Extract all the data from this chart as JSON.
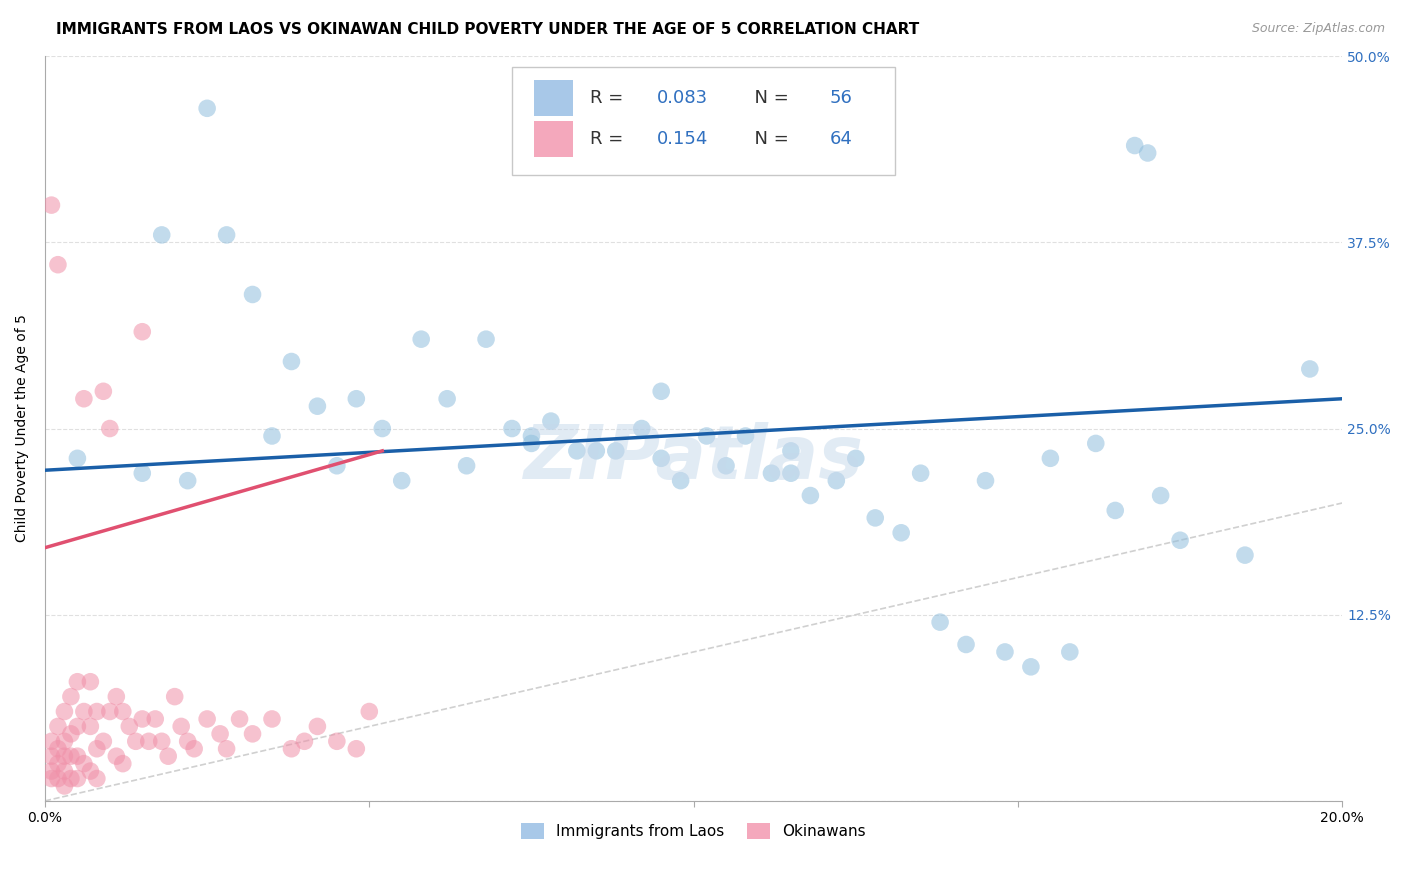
{
  "title": "IMMIGRANTS FROM LAOS VS OKINAWAN CHILD POVERTY UNDER THE AGE OF 5 CORRELATION CHART",
  "source": "Source: ZipAtlas.com",
  "ylabel_label": "Child Poverty Under the Age of 5",
  "x_min": 0.0,
  "x_max": 0.2,
  "y_min": 0.0,
  "y_max": 0.5,
  "x_ticks": [
    0.0,
    0.05,
    0.1,
    0.15,
    0.2
  ],
  "x_tick_labels": [
    "0.0%",
    "",
    "",
    "",
    "20.0%"
  ],
  "y_ticks": [
    0.0,
    0.125,
    0.25,
    0.375,
    0.5
  ],
  "y_tick_labels": [
    "",
    "12.5%",
    "25.0%",
    "37.5%",
    "50.0%"
  ],
  "blue_scatter_x": [
    0.005,
    0.018,
    0.025,
    0.028,
    0.032,
    0.038,
    0.042,
    0.048,
    0.052,
    0.058,
    0.062,
    0.068,
    0.072,
    0.075,
    0.078,
    0.082,
    0.088,
    0.092,
    0.095,
    0.098,
    0.102,
    0.108,
    0.112,
    0.115,
    0.118,
    0.122,
    0.128,
    0.132,
    0.138,
    0.142,
    0.148,
    0.152,
    0.158,
    0.162,
    0.168,
    0.172,
    0.015,
    0.022,
    0.035,
    0.045,
    0.055,
    0.065,
    0.075,
    0.085,
    0.095,
    0.105,
    0.115,
    0.125,
    0.135,
    0.145,
    0.155,
    0.165,
    0.175,
    0.185,
    0.195,
    0.17
  ],
  "blue_scatter_y": [
    0.23,
    0.38,
    0.465,
    0.38,
    0.34,
    0.295,
    0.265,
    0.27,
    0.25,
    0.31,
    0.27,
    0.31,
    0.25,
    0.245,
    0.255,
    0.235,
    0.235,
    0.25,
    0.275,
    0.215,
    0.245,
    0.245,
    0.22,
    0.22,
    0.205,
    0.215,
    0.19,
    0.18,
    0.12,
    0.105,
    0.1,
    0.09,
    0.1,
    0.24,
    0.44,
    0.205,
    0.22,
    0.215,
    0.245,
    0.225,
    0.215,
    0.225,
    0.24,
    0.235,
    0.23,
    0.225,
    0.235,
    0.23,
    0.22,
    0.215,
    0.23,
    0.195,
    0.175,
    0.165,
    0.29,
    0.435
  ],
  "pink_scatter_x": [
    0.001,
    0.001,
    0.001,
    0.001,
    0.001,
    0.002,
    0.002,
    0.002,
    0.002,
    0.002,
    0.003,
    0.003,
    0.003,
    0.003,
    0.003,
    0.004,
    0.004,
    0.004,
    0.004,
    0.005,
    0.005,
    0.005,
    0.005,
    0.006,
    0.006,
    0.006,
    0.007,
    0.007,
    0.007,
    0.008,
    0.008,
    0.008,
    0.009,
    0.009,
    0.01,
    0.01,
    0.011,
    0.011,
    0.012,
    0.012,
    0.013,
    0.014,
    0.015,
    0.015,
    0.016,
    0.017,
    0.018,
    0.019,
    0.02,
    0.021,
    0.022,
    0.023,
    0.025,
    0.027,
    0.028,
    0.03,
    0.032,
    0.035,
    0.038,
    0.04,
    0.042,
    0.045,
    0.048,
    0.05
  ],
  "pink_scatter_y": [
    0.4,
    0.04,
    0.03,
    0.02,
    0.015,
    0.36,
    0.05,
    0.035,
    0.025,
    0.015,
    0.06,
    0.04,
    0.03,
    0.02,
    0.01,
    0.07,
    0.045,
    0.03,
    0.015,
    0.08,
    0.05,
    0.03,
    0.015,
    0.27,
    0.06,
    0.025,
    0.08,
    0.05,
    0.02,
    0.06,
    0.035,
    0.015,
    0.275,
    0.04,
    0.25,
    0.06,
    0.07,
    0.03,
    0.06,
    0.025,
    0.05,
    0.04,
    0.315,
    0.055,
    0.04,
    0.055,
    0.04,
    0.03,
    0.07,
    0.05,
    0.04,
    0.035,
    0.055,
    0.045,
    0.035,
    0.055,
    0.045,
    0.055,
    0.035,
    0.04,
    0.05,
    0.04,
    0.035,
    0.06
  ],
  "blue_line_x": [
    0.0,
    0.2
  ],
  "blue_line_y": [
    0.222,
    0.27
  ],
  "pink_line_x": [
    0.0,
    0.052
  ],
  "pink_line_y": [
    0.17,
    0.235
  ],
  "diagonal_line_x": [
    0.0,
    0.2
  ],
  "diagonal_line_y": [
    0.0,
    0.2
  ],
  "scatter_color_blue": "#90bedd",
  "scatter_color_pink": "#f090a8",
  "line_color_blue": "#1a5fa8",
  "line_color_pink": "#e05070",
  "diagonal_color": "#d0d0d0",
  "background_color": "#ffffff",
  "grid_color": "#e0e0e0",
  "watermark": "ZIPatlas",
  "title_fontsize": 11,
  "axis_label_fontsize": 10,
  "tick_fontsize": 10,
  "right_tick_color": "#3070c0"
}
